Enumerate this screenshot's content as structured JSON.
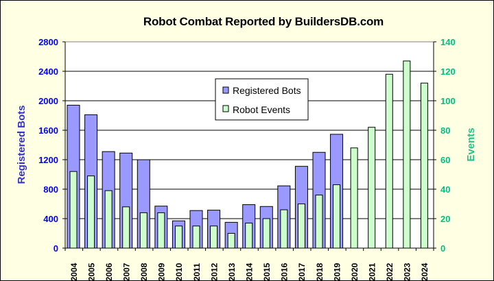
{
  "chart_data": {
    "type": "bar",
    "title": "Robot Combat Reported by BuildersDB.com",
    "categories": [
      "2004",
      "2005",
      "2006",
      "2007",
      "2008",
      "2009",
      "2010",
      "2011",
      "2012",
      "2013",
      "2014",
      "2015",
      "2016",
      "2017",
      "2018",
      "2019",
      "2020",
      "2021",
      "2022",
      "2023",
      "2024"
    ],
    "series": [
      {
        "name": "Registered Bots",
        "axis": "left",
        "color": "#9999ff",
        "values": [
          1940,
          1810,
          1310,
          1290,
          1200,
          570,
          370,
          510,
          515,
          350,
          590,
          565,
          845,
          1110,
          1300,
          1545,
          null,
          null,
          null,
          null,
          null
        ]
      },
      {
        "name": "Robot Events",
        "axis": "right",
        "color": "#ccffcc",
        "values": [
          52,
          49,
          39,
          28,
          24,
          24,
          15,
          15,
          15,
          10,
          17,
          20,
          26,
          30,
          36,
          43,
          68,
          82,
          118,
          127,
          112
        ]
      }
    ],
    "ylabel_left": "Registered Bots",
    "ylabel_right": "Events",
    "ylim_left": [
      0,
      2800
    ],
    "ylim_right": [
      0,
      140
    ],
    "yticks_left": [
      "0",
      "400",
      "800",
      "1200",
      "1600",
      "2000",
      "2400",
      "2800"
    ],
    "yticks_right": [
      "0",
      "20",
      "40",
      "60",
      "80",
      "100",
      "120",
      "140"
    ],
    "grid": true,
    "plot_background": "#ffffff",
    "chart_background": "#ffffe4",
    "legend_position": "upper-center"
  }
}
